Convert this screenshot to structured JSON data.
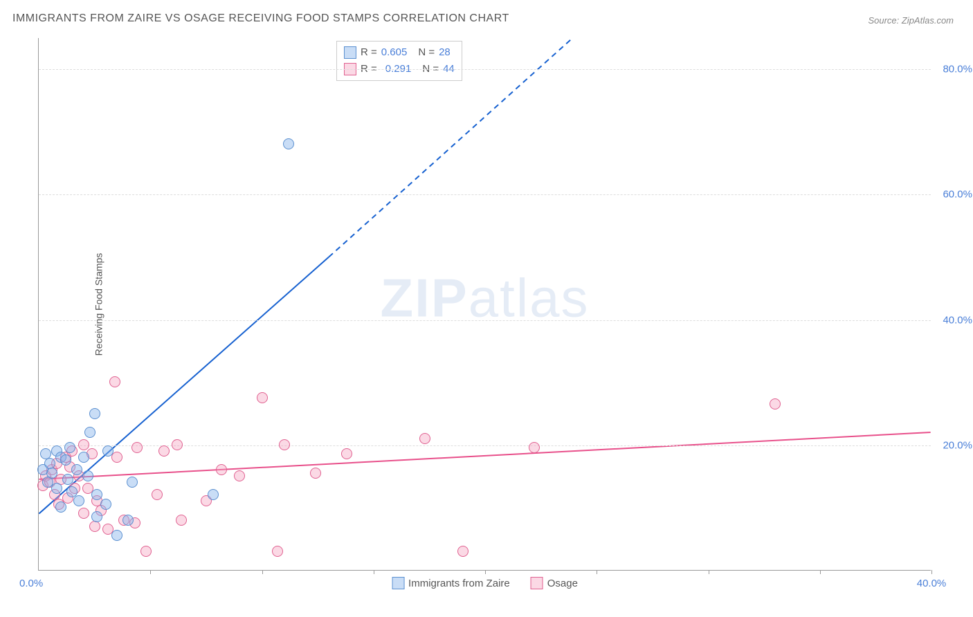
{
  "title": "IMMIGRANTS FROM ZAIRE VS OSAGE RECEIVING FOOD STAMPS CORRELATION CHART",
  "source": "Source: ZipAtlas.com",
  "ylabel": "Receiving Food Stamps",
  "watermark_bold": "ZIP",
  "watermark_light": "atlas",
  "chart": {
    "type": "scatter",
    "xlim": [
      0,
      40
    ],
    "ylim": [
      0,
      85
    ],
    "xticks": [
      0,
      5,
      10,
      15,
      20,
      25,
      30,
      35,
      40
    ],
    "xtick_label_last": "40.0%",
    "ytick_values": [
      20,
      40,
      60,
      80
    ],
    "ytick_labels": [
      "20.0%",
      "40.0%",
      "60.0%",
      "80.0%"
    ],
    "grid_color": "#dddddd",
    "background": "#ffffff",
    "marker_radius": 8,
    "marker_stroke_width": 1,
    "series1": {
      "name": "Immigrants from Zaire",
      "fill": "rgba(135,180,235,0.45)",
      "stroke": "#5a8fd0",
      "line_color": "#1560d0",
      "line_width": 2,
      "R": "0.605",
      "N": "28",
      "trend_start": [
        0,
        9
      ],
      "trend_solid_end": [
        13,
        50
      ],
      "trend_dash_end": [
        25.5,
        90
      ],
      "points": [
        [
          0.2,
          16
        ],
        [
          0.3,
          18.5
        ],
        [
          0.4,
          14
        ],
        [
          0.5,
          17
        ],
        [
          0.6,
          15.5
        ],
        [
          0.8,
          19
        ],
        [
          0.8,
          13
        ],
        [
          1.0,
          18
        ],
        [
          1.0,
          10
        ],
        [
          1.2,
          17.5
        ],
        [
          1.3,
          14.5
        ],
        [
          1.4,
          19.5
        ],
        [
          1.5,
          12.5
        ],
        [
          1.7,
          16
        ],
        [
          1.8,
          11
        ],
        [
          2.0,
          18
        ],
        [
          2.2,
          15
        ],
        [
          2.3,
          22
        ],
        [
          2.5,
          25
        ],
        [
          2.6,
          12
        ],
        [
          2.6,
          8.5
        ],
        [
          3.0,
          10.5
        ],
        [
          3.1,
          19
        ],
        [
          3.5,
          5.5
        ],
        [
          4.0,
          8
        ],
        [
          4.2,
          14
        ],
        [
          7.8,
          12
        ],
        [
          11.2,
          68
        ]
      ]
    },
    "series2": {
      "name": "Osage",
      "fill": "rgba(245,160,190,0.40)",
      "stroke": "#e06090",
      "line_color": "#e84f8a",
      "line_width": 2,
      "R": "0.291",
      "N": "44",
      "trend_start": [
        0,
        14.5
      ],
      "trend_solid_end": [
        40,
        22
      ],
      "points": [
        [
          0.2,
          13.5
        ],
        [
          0.3,
          15
        ],
        [
          0.5,
          14
        ],
        [
          0.6,
          16
        ],
        [
          0.7,
          12
        ],
        [
          0.8,
          17
        ],
        [
          0.9,
          10.5
        ],
        [
          1.0,
          14.5
        ],
        [
          1.2,
          18
        ],
        [
          1.3,
          11.5
        ],
        [
          1.4,
          16.5
        ],
        [
          1.5,
          19
        ],
        [
          1.6,
          13
        ],
        [
          1.8,
          15
        ],
        [
          2.0,
          20
        ],
        [
          2.0,
          9
        ],
        [
          2.2,
          13
        ],
        [
          2.4,
          18.5
        ],
        [
          2.5,
          7
        ],
        [
          2.6,
          11
        ],
        [
          2.8,
          9.5
        ],
        [
          3.1,
          6.5
        ],
        [
          3.4,
          30
        ],
        [
          3.5,
          18
        ],
        [
          3.8,
          8
        ],
        [
          4.3,
          7.5
        ],
        [
          4.4,
          19.5
        ],
        [
          4.8,
          3
        ],
        [
          5.3,
          12
        ],
        [
          5.6,
          19
        ],
        [
          6.2,
          20
        ],
        [
          6.4,
          8
        ],
        [
          9.0,
          15
        ],
        [
          10.0,
          27.5
        ],
        [
          10.7,
          3
        ],
        [
          11.0,
          20
        ],
        [
          12.4,
          15.5
        ],
        [
          13.8,
          18.5
        ],
        [
          17.3,
          21
        ],
        [
          19.0,
          3
        ],
        [
          22.2,
          19.5
        ],
        [
          33.0,
          26.5
        ],
        [
          7.5,
          11
        ],
        [
          8.2,
          16
        ]
      ]
    }
  },
  "stats_legend": {
    "r_prefix": "R =",
    "n_prefix": "N ="
  },
  "x_origin_label": "0.0%"
}
